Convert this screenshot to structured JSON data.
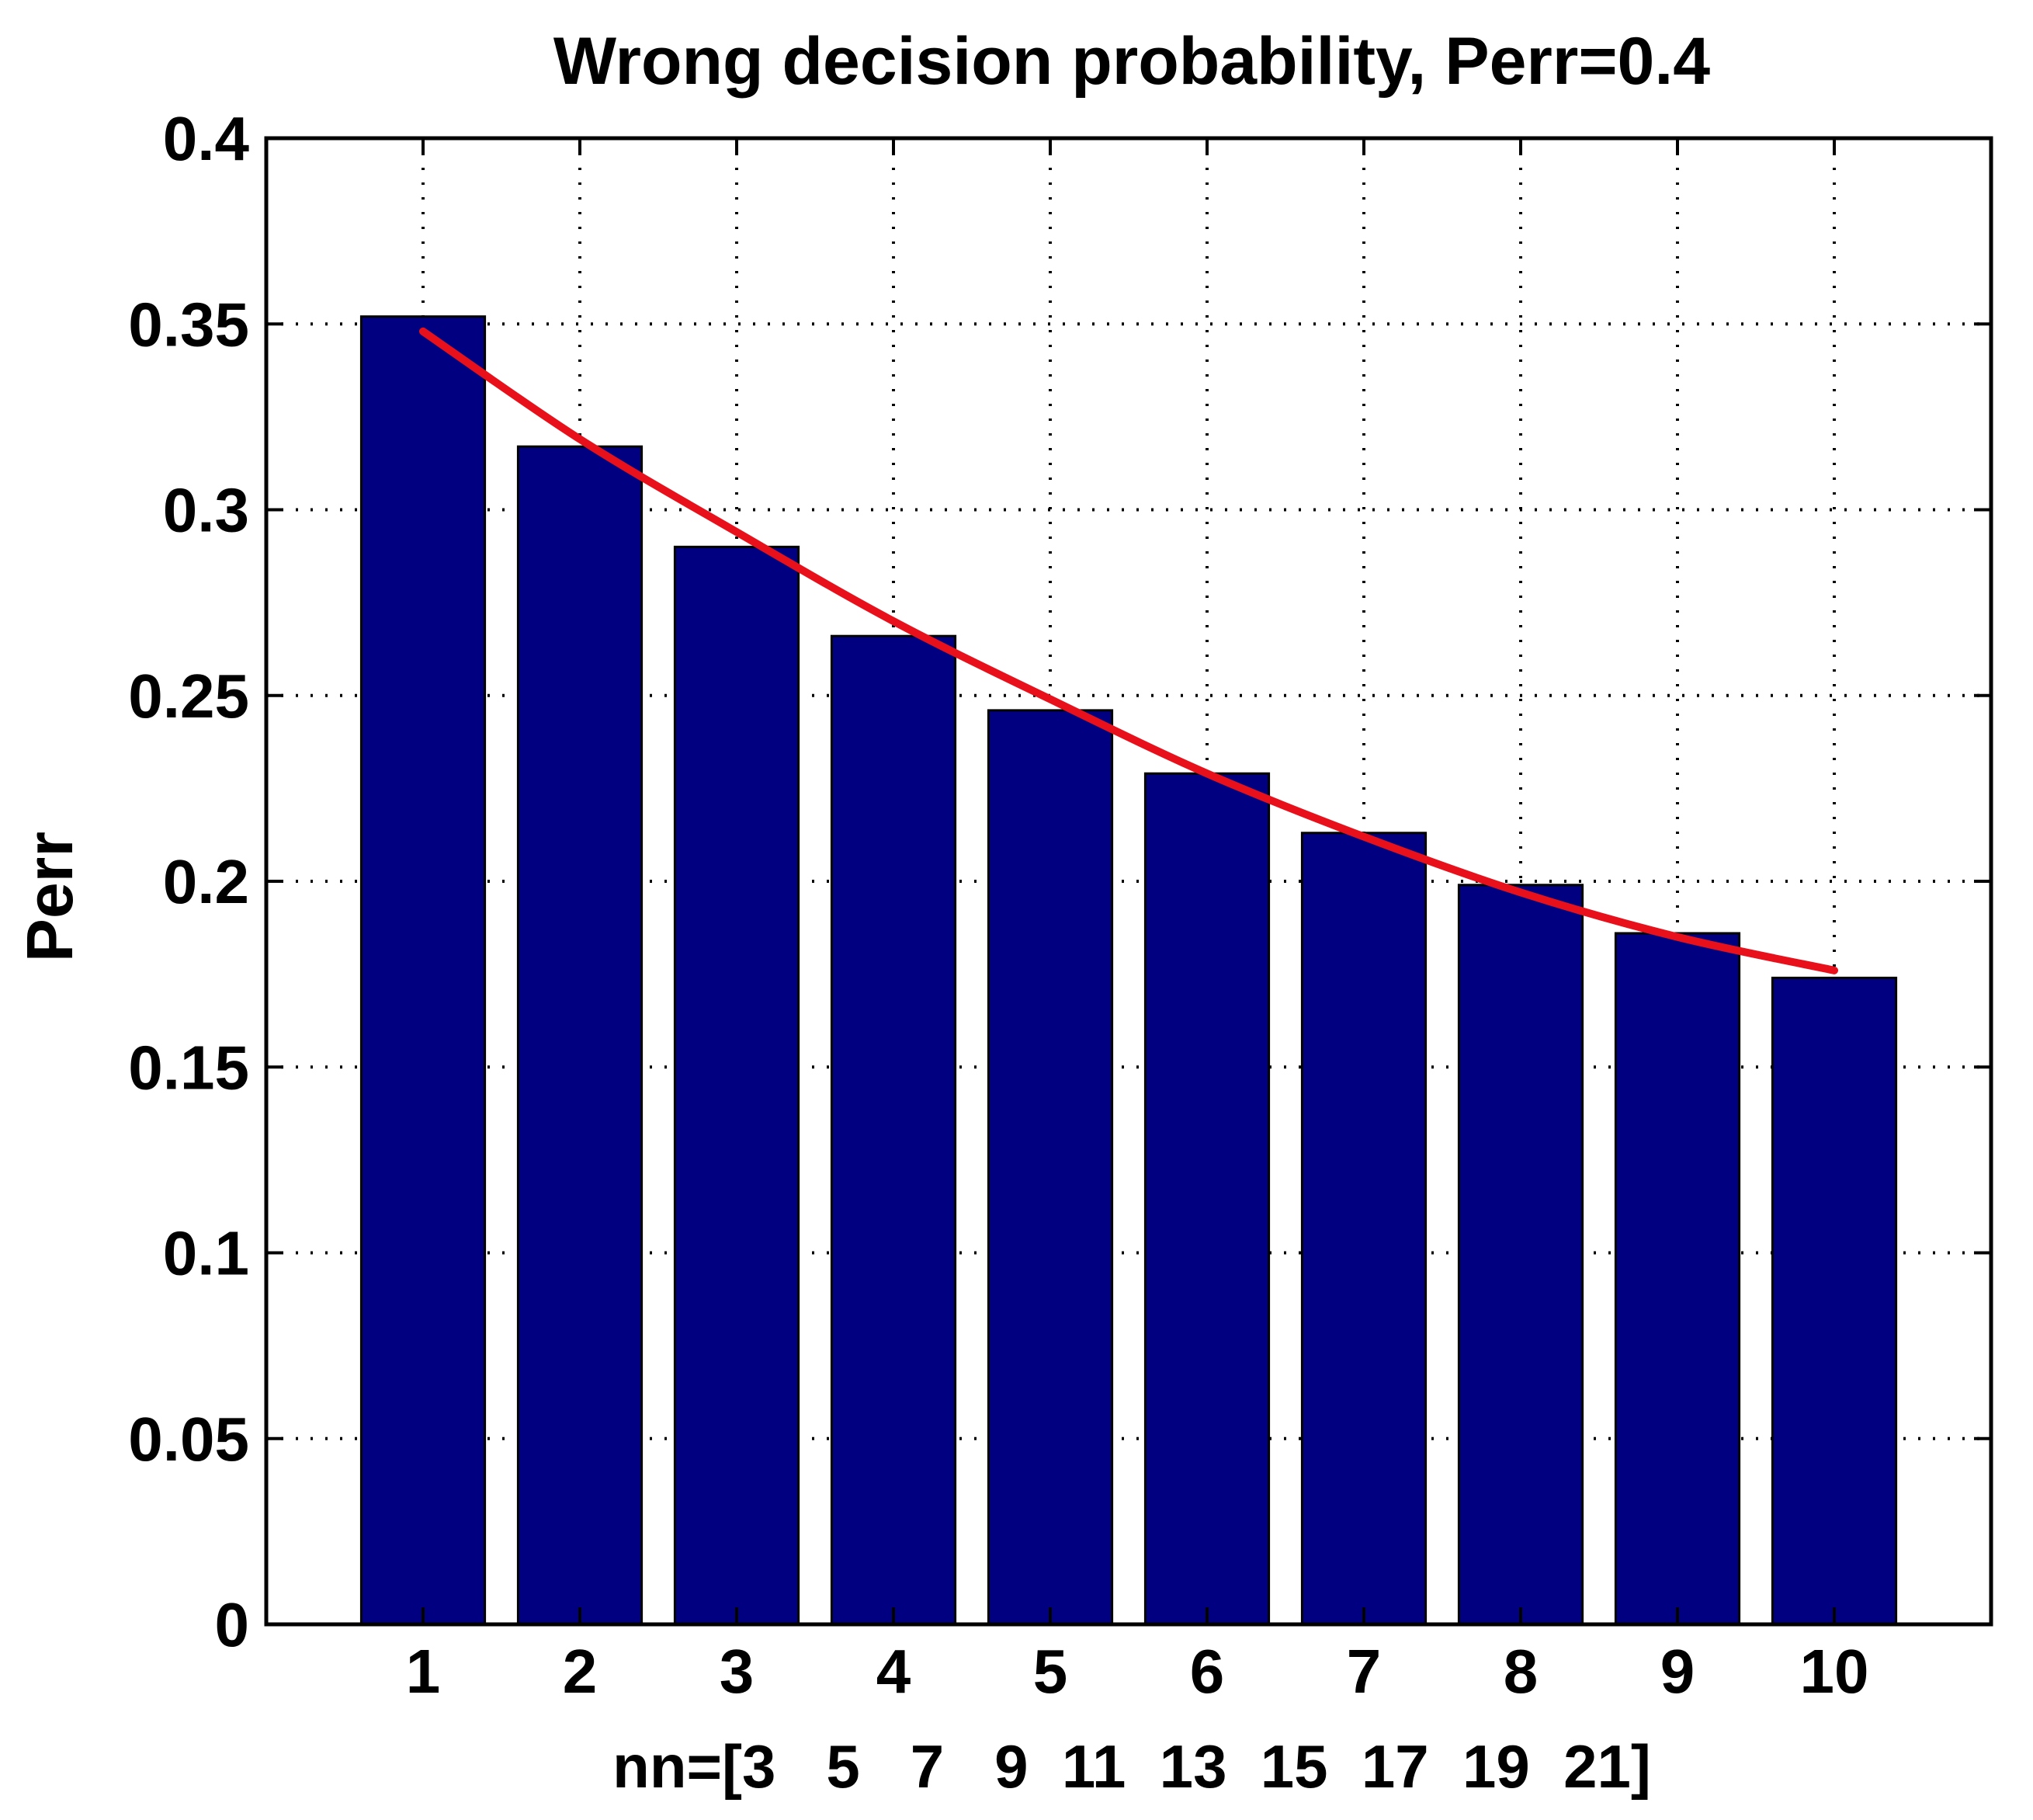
{
  "chart_data": {
    "type": "bar",
    "title": "Wrong decision probability, Perr=0.4",
    "xlabel": "nn=[3   5   7   9  11  13  15  17  19  21]",
    "ylabel": "Perr",
    "categories": [
      "1",
      "2",
      "3",
      "4",
      "5",
      "6",
      "7",
      "8",
      "9",
      "10"
    ],
    "values": [
      0.352,
      0.317,
      0.29,
      0.266,
      0.246,
      0.229,
      0.213,
      0.199,
      0.186,
      0.174
    ],
    "fit_line": [
      0.348,
      0.319,
      0.294,
      0.27,
      0.249,
      0.229,
      0.212,
      0.197,
      0.185,
      0.176
    ],
    "xlim": [
      0,
      11
    ],
    "ylim": [
      0,
      0.4
    ],
    "yticks": [
      "0",
      "0.05",
      "0.1",
      "0.15",
      "0.2",
      "0.25",
      "0.3",
      "0.35",
      "0.4"
    ],
    "grid": true,
    "bar_color": "#000080",
    "line_color": "#e8101a"
  }
}
